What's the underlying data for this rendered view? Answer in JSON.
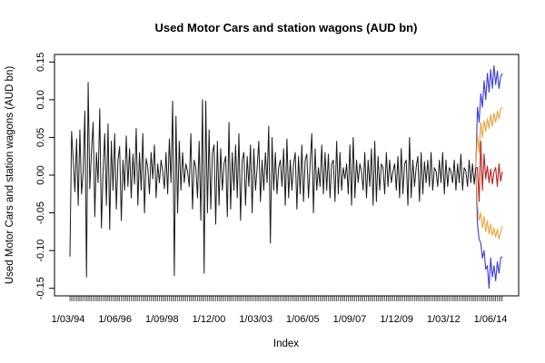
{
  "chart_data": {
    "type": "line",
    "title": "Used Motor Cars and station wagons (AUD bn)",
    "xlabel": "Index",
    "ylabel": "Used Motor Cars and station wagons (AUD bn)",
    "ylim": [
      -0.16,
      0.16
    ],
    "y_ticks": [
      -0.15,
      -0.1,
      -0.05,
      0.0,
      0.05,
      0.1,
      0.15
    ],
    "y_tick_labels": [
      "-0.15",
      "-0.10",
      "-0.05",
      "0.00",
      "0.05",
      "0.10",
      "0.15"
    ],
    "x_tick_labels": [
      "1/03/94",
      "1/06/96",
      "1/09/98",
      "1/12/00",
      "1/03/03",
      "1/06/05",
      "1/09/07",
      "1/12/09",
      "1/03/12",
      "1/06/14"
    ],
    "colors": {
      "history": "#1a1a1a",
      "forecast": "#b22222",
      "pi_80": "#e8a33c",
      "pi_95": "#3b3bd6"
    },
    "series": [
      {
        "role": "history",
        "color": "#1a1a1a",
        "values": [
          -0.108,
          0.058,
          0.02,
          -0.022,
          0.048,
          -0.04,
          0.06,
          -0.025,
          0.005,
          0.085,
          -0.135,
          0.123,
          -0.018,
          0.032,
          0.07,
          -0.055,
          0.03,
          -0.01,
          0.088,
          -0.07,
          0.005,
          0.055,
          -0.04,
          0.068,
          -0.072,
          0.045,
          -0.02,
          0.055,
          -0.045,
          0.02,
          0.038,
          -0.06,
          0.02,
          -0.02,
          0.052,
          -0.015,
          0.035,
          -0.03,
          0.028,
          -0.012,
          0.062,
          -0.04,
          0.03,
          -0.02,
          0.055,
          -0.05,
          0.022,
          0.01,
          -0.025,
          0.03,
          -0.005,
          0.04,
          -0.03,
          0.015,
          -0.01,
          0.02,
          0.005,
          -0.018,
          0.03,
          -0.025,
          0.048,
          -0.01,
          0.098,
          -0.133,
          0.078,
          -0.05,
          0.045,
          -0.02,
          0.03,
          -0.01,
          0.015,
          0.005,
          -0.015,
          0.055,
          -0.045,
          0.02,
          0.01,
          -0.03,
          0.045,
          -0.06,
          0.1,
          -0.13,
          0.098,
          -0.05,
          0.06,
          -0.045,
          0.03,
          0.04,
          -0.065,
          0.045,
          -0.04,
          0.035,
          -0.02,
          0.015,
          0.025,
          -0.055,
          0.07,
          -0.045,
          0.03,
          -0.02,
          0.04,
          -0.03,
          0.055,
          -0.06,
          0.02,
          0.03,
          -0.04,
          0.025,
          -0.015,
          0.04,
          -0.05,
          0.035,
          -0.02,
          0.01,
          0.045,
          -0.035,
          0.02,
          -0.02,
          0.03,
          -0.01,
          0.065,
          -0.09,
          0.05,
          -0.02,
          0.03,
          -0.025,
          0.01,
          0.02,
          -0.015,
          0.035,
          -0.04,
          0.048,
          -0.03,
          0.02,
          -0.02,
          0.015,
          0.03,
          -0.045,
          0.025,
          -0.025,
          0.04,
          -0.035,
          0.02,
          0.028,
          -0.03,
          0.015,
          0.055,
          -0.05,
          0.035,
          -0.02,
          0.01,
          -0.015,
          0.04,
          -0.025,
          0.03,
          -0.02,
          0.028,
          -0.03,
          0.015,
          0.02,
          -0.035,
          0.045,
          -0.025,
          0.03,
          -0.02,
          0.01,
          -0.005,
          0.015,
          -0.025,
          0.04,
          -0.04,
          0.05,
          -0.03,
          0.02,
          -0.01,
          0.015,
          0.005,
          -0.02,
          0.03,
          -0.03,
          0.02,
          -0.015,
          0.035,
          -0.04,
          0.045,
          -0.035,
          0.025,
          -0.02,
          0.015,
          0.01,
          -0.025,
          0.03,
          -0.015,
          0.02,
          -0.01,
          0.005,
          0.015,
          -0.02,
          0.025,
          -0.03,
          0.035,
          -0.025,
          0.015,
          0.02,
          -0.04,
          0.05,
          -0.03,
          0.02,
          -0.015,
          0.01,
          0.025,
          -0.035,
          0.03,
          -0.025,
          0.018,
          -0.01,
          0.02,
          -0.015,
          0.03,
          -0.02,
          0.01,
          0.005,
          -0.015,
          0.02,
          -0.01,
          0.03,
          -0.025,
          0.02,
          -0.015,
          0.01,
          0.005,
          -0.01,
          0.02,
          -0.02,
          0.015,
          -0.01,
          0.028,
          -0.02,
          0.01,
          0.005,
          -0.015,
          0.02,
          -0.01,
          0.015,
          -0.012,
          0.01
        ],
        "note_points_estimated": true
      },
      {
        "role": "forecast",
        "color": "#b22222",
        "values": [
          0.01,
          -0.035,
          0.045,
          -0.02,
          0.028,
          -0.005,
          0.012,
          -0.01,
          0.008,
          -0.012,
          0.005,
          0.01,
          -0.015,
          0.015,
          -0.008,
          0.005
        ]
      },
      {
        "role": "pi_80_upper",
        "color": "#e8a33c",
        "values": [
          0.055,
          0.03,
          0.07,
          0.05,
          0.072,
          0.058,
          0.075,
          0.062,
          0.08,
          0.065,
          0.082,
          0.07,
          0.085,
          0.075,
          0.088,
          0.09
        ]
      },
      {
        "role": "pi_80_lower",
        "color": "#e8a33c",
        "values": [
          -0.04,
          -0.06,
          -0.05,
          -0.07,
          -0.055,
          -0.075,
          -0.06,
          -0.078,
          -0.065,
          -0.08,
          -0.07,
          -0.082,
          -0.072,
          -0.085,
          -0.075,
          -0.068
        ]
      },
      {
        "role": "pi_95_upper",
        "color": "#3b3bd6",
        "values": [
          0.09,
          0.07,
          0.108,
          0.09,
          0.125,
          0.1,
          0.135,
          0.11,
          0.14,
          0.115,
          0.145,
          0.12,
          0.138,
          0.115,
          0.13,
          0.135
        ]
      },
      {
        "role": "pi_95_lower",
        "color": "#3b3bd6",
        "values": [
          -0.065,
          -0.085,
          -0.09,
          -0.11,
          -0.1,
          -0.125,
          -0.12,
          -0.15,
          -0.11,
          -0.135,
          -0.12,
          -0.14,
          -0.115,
          -0.13,
          -0.11,
          -0.108
        ]
      }
    ],
    "grid": false,
    "legend": "none"
  }
}
